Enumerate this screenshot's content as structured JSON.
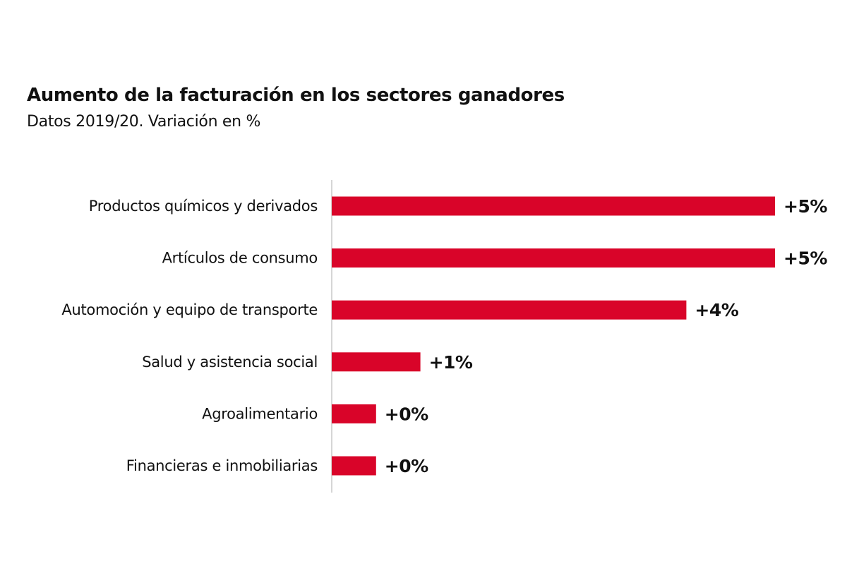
{
  "chart_data": {
    "type": "bar",
    "orientation": "horizontal",
    "title": "Aumento de la facturación en los sectores ganadores",
    "subtitle": "Datos 2019/20. Variación en %",
    "categories": [
      "Productos químicos y derivados",
      "Artículos de consumo",
      "Automoción y equipo de transporte",
      "Salud y asistencia social",
      "Agroalimentario",
      "Financieras e inmobiliarias"
    ],
    "values": [
      5.0,
      5.0,
      4.0,
      1.0,
      0.5,
      0.5
    ],
    "data_labels": [
      "+5%",
      "+5%",
      "+4%",
      "+1%",
      "+0%",
      "+0%"
    ],
    "xlabel": "",
    "ylabel": "",
    "xlim": [
      0,
      5
    ],
    "grid": false,
    "legend": "none",
    "bar_color": "#d90429"
  }
}
